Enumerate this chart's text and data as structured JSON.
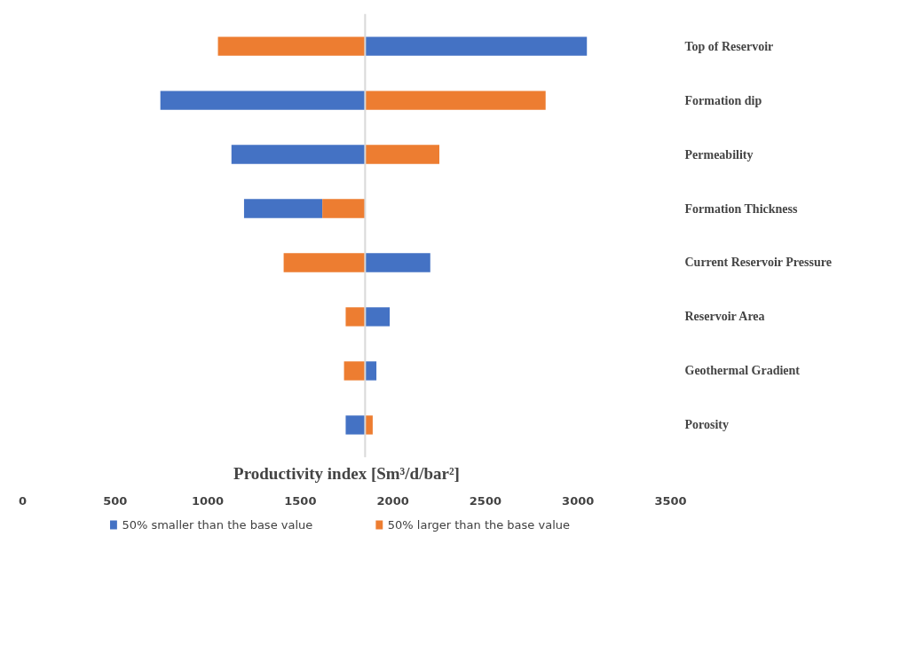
{
  "chart_data": {
    "type": "bar",
    "orientation": "horizontal",
    "xlabel": "Productivity index [Sm³/d/bar²]",
    "categories": [
      "Top of Reservoir",
      "Formation dip",
      "Permeability",
      "Formation Thickness",
      "Current Reservoir Pressure",
      "Reservoir Area",
      "Geothermal Gradient",
      "Porosity"
    ],
    "series": [
      {
        "name": "50% smaller than the base value",
        "color": "#4472c4",
        "base": [
          1850,
          744,
          1128,
          1196,
          1850,
          1850,
          1850,
          1745
        ],
        "values": [
          1198,
          1106,
          722,
          423,
          352,
          133,
          61,
          105
        ]
      },
      {
        "name": "50% larger than the base value",
        "color": "#ed7d31",
        "base": [
          1055,
          1850,
          1850,
          1619,
          1410,
          1745,
          1736,
          1850
        ],
        "values": [
          795,
          975,
          401,
          231,
          440,
          105,
          114,
          41
        ]
      }
    ],
    "xlim": [
      0,
      3500
    ],
    "xticks": [
      0,
      500,
      1000,
      1500,
      2000,
      2500,
      3000,
      3500
    ],
    "ref_lines": [
      {
        "axis": "x",
        "value": 1850,
        "color": "#d9d9d9"
      }
    ],
    "grid": false,
    "legend": "bottom"
  }
}
